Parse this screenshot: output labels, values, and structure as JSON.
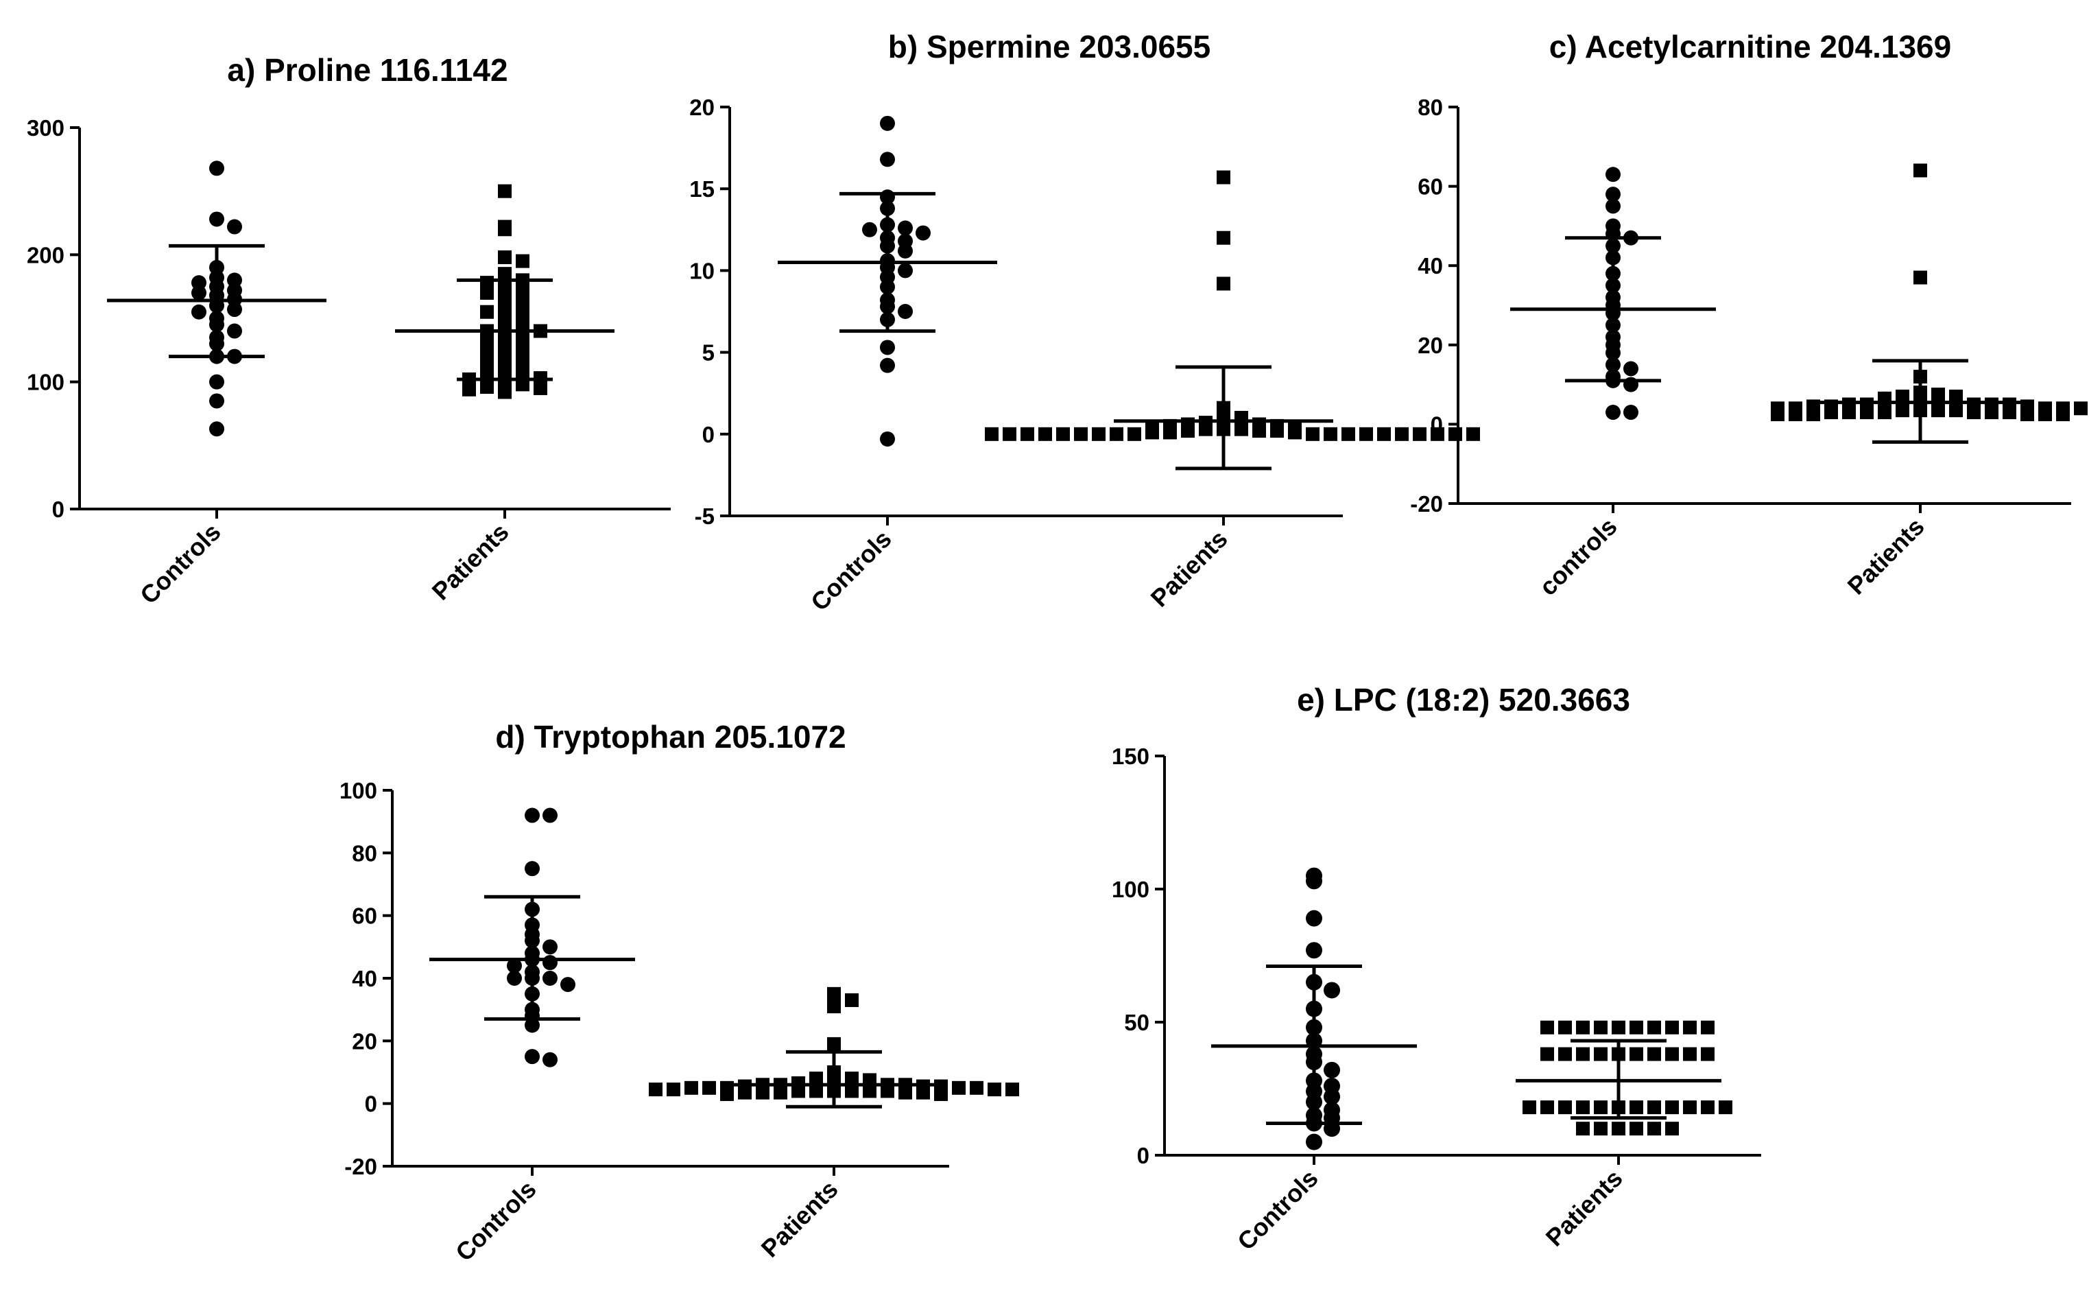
{
  "chart_data": [
    {
      "id": "a",
      "type": "scatter",
      "title_prefix": "a)",
      "title": "Proline 116.1142",
      "categories": [
        "Controls",
        "Patients"
      ],
      "ylim": [
        0,
        300
      ],
      "yticks": [
        0,
        100,
        200,
        300
      ],
      "series": [
        {
          "name": "Controls",
          "marker": "circle",
          "mean": 164,
          "sd_low": 120,
          "sd_high": 207,
          "values": [
            268,
            228,
            222,
            190,
            182,
            180,
            178,
            175,
            172,
            170,
            168,
            165,
            160,
            157,
            155,
            150,
            145,
            140,
            135,
            130,
            120,
            120,
            100,
            85,
            63
          ]
        },
        {
          "name": "Patients",
          "marker": "square",
          "mean": 140,
          "sd_low": 102,
          "sd_high": 180,
          "values": [
            250,
            222,
            220,
            198,
            195,
            185,
            182,
            180,
            178,
            175,
            172,
            170,
            168,
            165,
            160,
            158,
            155,
            150,
            148,
            145,
            142,
            140,
            140,
            138,
            135,
            132,
            130,
            128,
            125,
            122,
            120,
            118,
            115,
            112,
            110,
            108,
            105,
            104,
            103,
            102,
            100,
            98,
            96,
            95,
            94,
            92
          ]
        }
      ]
    },
    {
      "id": "b",
      "type": "scatter",
      "title_prefix": "b)",
      "title": "Spermine 203.0655",
      "categories": [
        "Controls",
        "Patients"
      ],
      "ylim": [
        -5,
        20
      ],
      "yticks": [
        -5,
        0,
        5,
        10,
        15,
        20
      ],
      "series": [
        {
          "name": "Controls",
          "marker": "circle",
          "mean": 10.5,
          "sd_low": 6.3,
          "sd_high": 14.7,
          "values": [
            19.0,
            16.8,
            14.5,
            13.8,
            12.8,
            12.6,
            12.5,
            12.3,
            12.0,
            11.8,
            11.5,
            11.2,
            10.6,
            10.2,
            10.0,
            9.6,
            9.0,
            8.2,
            7.8,
            7.5,
            7.0,
            5.3,
            4.2,
            -0.3
          ]
        },
        {
          "name": "Patients",
          "marker": "square",
          "mean": 0.8,
          "sd_low": -2.1,
          "sd_high": 4.1,
          "values": [
            15.7,
            12.0,
            9.2,
            1.6,
            1.2,
            1.0,
            0.9,
            0.8,
            0.7,
            0.6,
            0.6,
            0.5,
            0.5,
            0.4,
            0.4,
            0.3,
            0.3,
            0.3,
            0.2,
            0.2,
            0.2,
            0.1,
            0.1,
            0.1,
            0.0,
            0.0,
            0.0,
            0.0,
            0.0,
            0.0,
            0.0,
            0.0,
            0.0,
            0.0,
            0.0,
            0.0,
            0.0,
            0.0,
            0.0,
            0.0,
            0.0,
            0.0,
            0.0
          ]
        }
      ]
    },
    {
      "id": "c",
      "type": "scatter",
      "title_prefix": "c)",
      "title": "Acetylcarnitine 204.1369",
      "categories": [
        "controls",
        "Patients"
      ],
      "ylim": [
        -20,
        80
      ],
      "yticks": [
        -20,
        0,
        20,
        40,
        60,
        80
      ],
      "series": [
        {
          "name": "controls",
          "marker": "circle",
          "mean": 29,
          "sd_low": 11,
          "sd_high": 47,
          "values": [
            63,
            58,
            55,
            50,
            48,
            47,
            45,
            42,
            38,
            35,
            32,
            30,
            28,
            25,
            22,
            20,
            18,
            15,
            14,
            12,
            11,
            10,
            3,
            3
          ]
        },
        {
          "name": "Patients",
          "marker": "square",
          "mean": 5.5,
          "sd_low": -4.5,
          "sd_high": 16,
          "values": [
            64,
            37,
            12,
            8,
            7.5,
            7,
            7,
            6.5,
            6,
            6,
            6,
            5.5,
            5.5,
            5,
            5,
            5,
            5,
            5,
            4.5,
            4.5,
            4.5,
            4,
            4,
            4,
            4,
            4,
            3.5,
            3.5,
            3.5,
            3.5,
            3,
            3,
            3,
            3,
            3,
            3,
            3,
            2.5,
            2.5,
            2.5,
            2.5,
            2.5,
            2.5
          ]
        }
      ]
    },
    {
      "id": "d",
      "type": "scatter",
      "title_prefix": "d)",
      "title": "Tryptophan 205.1072",
      "categories": [
        "Controls",
        "Patients"
      ],
      "ylim": [
        -20,
        100
      ],
      "yticks": [
        -20,
        0,
        20,
        40,
        60,
        80,
        100
      ],
      "series": [
        {
          "name": "Controls",
          "marker": "circle",
          "mean": 46,
          "sd_low": 27,
          "sd_high": 66,
          "values": [
            92,
            92,
            75,
            62,
            57,
            54,
            52,
            50,
            48,
            46,
            45,
            44,
            42,
            40,
            40,
            40,
            38,
            35,
            30,
            28,
            25,
            15,
            14
          ]
        },
        {
          "name": "Patients",
          "marker": "square",
          "mean": 6,
          "sd_low": -1,
          "sd_high": 16.5,
          "values": [
            35,
            33,
            33,
            31,
            19,
            10,
            8,
            8,
            7.5,
            7,
            7,
            7,
            6.5,
            6.5,
            6,
            6,
            6,
            6,
            5.5,
            5.5,
            5.5,
            5,
            5,
            5,
            5,
            5,
            4.5,
            4.5,
            4.5,
            4.5,
            4,
            4,
            4,
            4,
            4,
            4,
            3.5,
            3.5,
            3.5,
            3.5,
            3.5,
            3,
            3
          ]
        }
      ]
    },
    {
      "id": "e",
      "type": "scatter",
      "title_prefix": "e)",
      "title": "LPC (18:2) 520.3663",
      "categories": [
        "Controls",
        "Patients"
      ],
      "ylim": [
        0,
        150
      ],
      "yticks": [
        0,
        50,
        100,
        150
      ],
      "series": [
        {
          "name": "Controls",
          "marker": "circle",
          "mean": 41,
          "sd_low": 12,
          "sd_high": 71,
          "values": [
            105,
            103,
            89,
            77,
            65,
            62,
            55,
            48,
            43,
            38,
            35,
            32,
            28,
            26,
            24,
            22,
            20,
            17,
            15,
            14,
            12,
            10,
            5
          ]
        },
        {
          "name": "Patients",
          "marker": "square",
          "mean": 28,
          "sd_low": 14,
          "sd_high": 43,
          "values": [
            48,
            48,
            48,
            48,
            48,
            48,
            48,
            48,
            48,
            48,
            38,
            38,
            38,
            38,
            38,
            38,
            38,
            38,
            38,
            38,
            18,
            18,
            18,
            18,
            18,
            18,
            18,
            18,
            18,
            18,
            18,
            18,
            10,
            10,
            10,
            10,
            10,
            10
          ]
        }
      ]
    }
  ]
}
